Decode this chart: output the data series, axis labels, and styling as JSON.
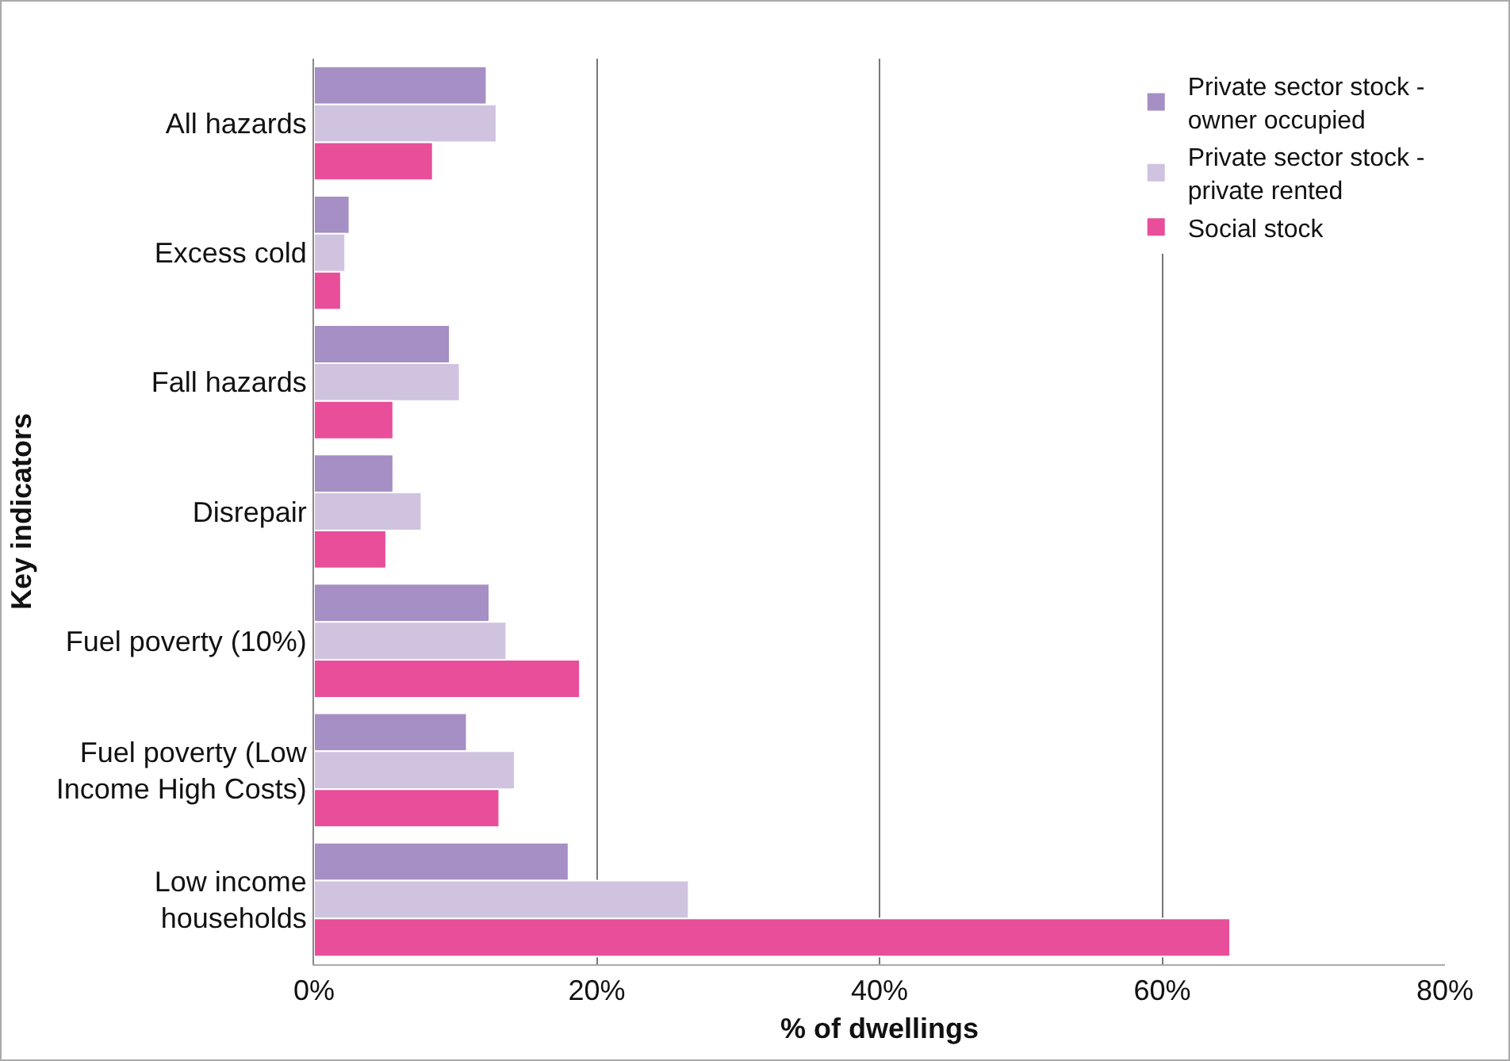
{
  "chart_data": {
    "type": "bar",
    "orientation": "horizontal",
    "xlabel": "% of dwellings",
    "ylabel": "Key indicators",
    "categories": [
      "All hazards",
      "Excess cold",
      "Fall hazards",
      "Disrepair",
      "Fuel poverty (10%)",
      "Fuel poverty (Low Income High Costs)",
      "Low income households"
    ],
    "series": [
      {
        "name": "Private sector stock - owner occupied",
        "color": "#a58fc4",
        "values": [
          12.2,
          2.5,
          9.6,
          5.6,
          12.4,
          10.8,
          18.0
        ]
      },
      {
        "name": "Private sector stock - private rented",
        "color": "#d0c3e0",
        "values": [
          12.9,
          2.2,
          10.3,
          7.6,
          13.6,
          14.2,
          26.5
        ]
      },
      {
        "name": "Social stock",
        "color": "#e84e9a",
        "values": [
          8.4,
          1.9,
          5.6,
          5.1,
          18.8,
          13.1,
          64.8
        ]
      }
    ],
    "xlim": [
      0,
      80
    ],
    "xticks": [
      {
        "value": 0,
        "label": "0%"
      },
      {
        "value": 20,
        "label": "20%"
      },
      {
        "value": 40,
        "label": "40%"
      },
      {
        "value": 60,
        "label": "60%"
      },
      {
        "value": 80,
        "label": "80%"
      }
    ],
    "grid": "x",
    "legend": "top right"
  }
}
